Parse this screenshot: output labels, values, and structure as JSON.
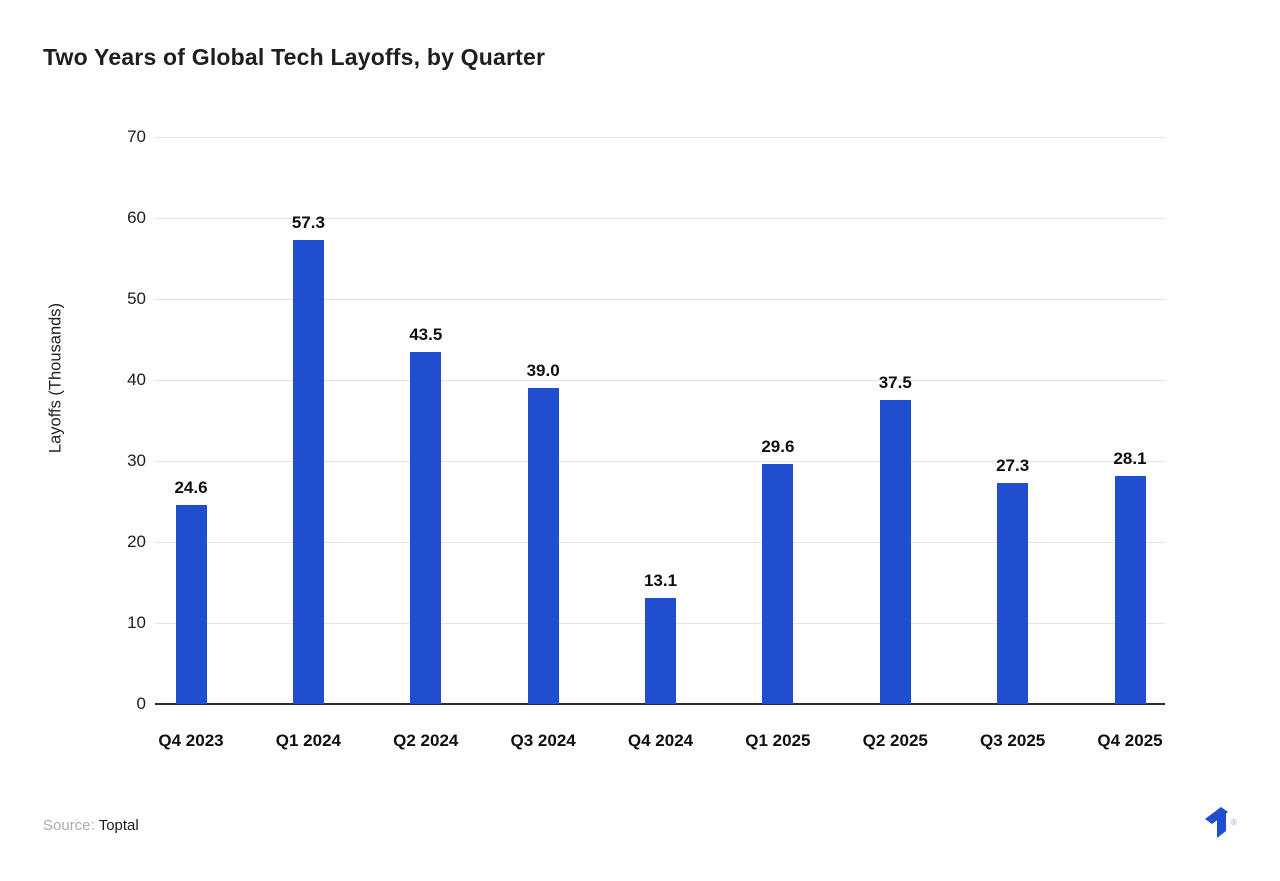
{
  "figure": {
    "title": "Two Years of Global Tech Layoffs, by Quarter",
    "source": {
      "label": "Source:",
      "name": "Toptal"
    },
    "logo_icon": "toptal-logo",
    "registered_mark": "®"
  },
  "chart_data": {
    "type": "bar",
    "title": "Two Years of Global Tech Layoffs, by Quarter",
    "categories": [
      "Q4 2023",
      "Q1 2024",
      "Q2 2024",
      "Q3 2024",
      "Q4 2024",
      "Q1 2025",
      "Q2 2025",
      "Q3 2025",
      "Q4 2025"
    ],
    "values": [
      24.6,
      57.3,
      43.5,
      39.0,
      13.1,
      29.6,
      37.5,
      27.3,
      28.1
    ],
    "value_labels": [
      "24.6",
      "57.3",
      "43.5",
      "39.0",
      "13.1",
      "29.6",
      "37.5",
      "27.3",
      "28.1"
    ],
    "xlabel": "",
    "ylabel": "Layoffs (Thousands)",
    "ylim": [
      0,
      70
    ],
    "yticks": [
      0,
      10,
      20,
      30,
      40,
      50,
      60,
      70
    ],
    "grid": true,
    "legend": "none",
    "bar_color": "#204ECF",
    "gridline_color": "#e4e4e4",
    "baseline_color": "#2d2d2d"
  }
}
